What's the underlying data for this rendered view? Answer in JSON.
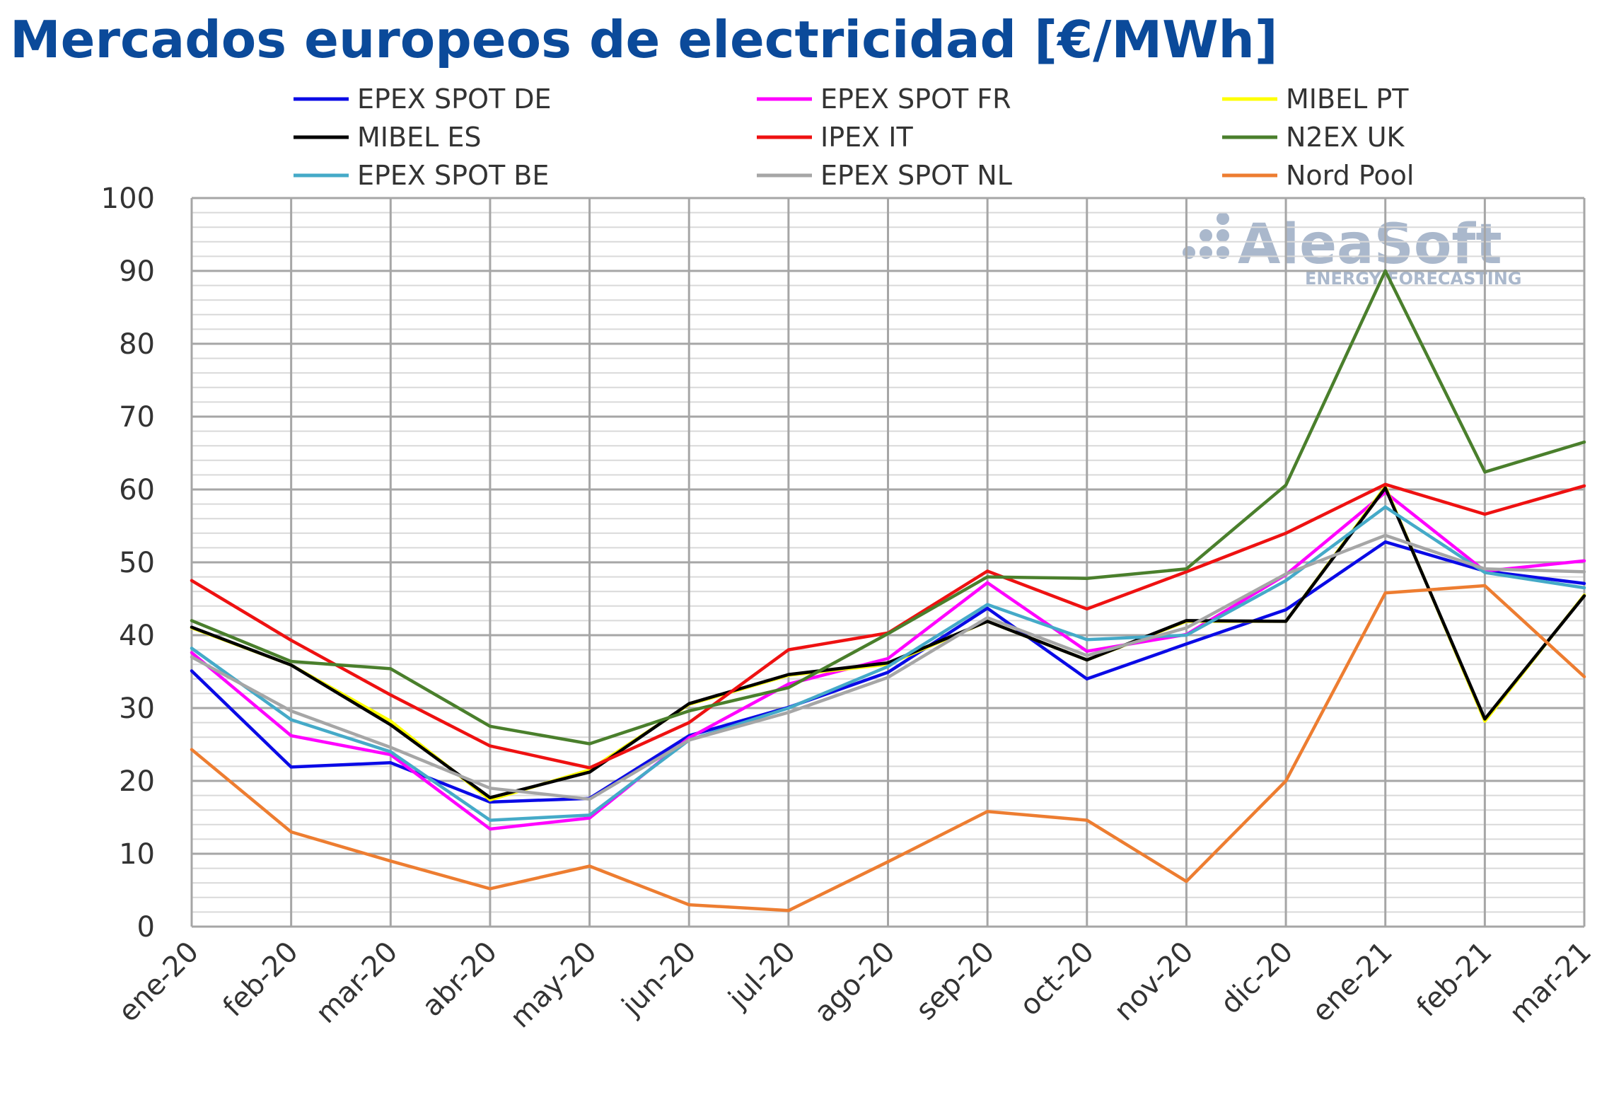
{
  "title": "Mercados europeos de electricidad [€/MWh]",
  "watermark": {
    "brand": "AleaSoft",
    "tagline": "ENERGY FORECASTING"
  },
  "chart_data": {
    "type": "line",
    "title": "Mercados europeos de electricidad [€/MWh]",
    "xlabel": "",
    "ylabel": "",
    "ylim": [
      0,
      100
    ],
    "yticks": [
      0,
      10,
      20,
      30,
      40,
      50,
      60,
      70,
      80,
      90,
      100
    ],
    "grid": true,
    "legend_position": "top",
    "categories": [
      "ene-20",
      "feb-20",
      "mar-20",
      "abr-20",
      "may-20",
      "jun-20",
      "jul-20",
      "ago-20",
      "sep-20",
      "oct-20",
      "nov-20",
      "dic-20",
      "ene-21",
      "feb-21",
      "mar-21"
    ],
    "series": [
      {
        "name": "EPEX SPOT DE",
        "color": "#0a0ae6",
        "values": [
          35.1,
          21.9,
          22.5,
          17.1,
          17.6,
          26.2,
          30.1,
          34.9,
          43.7,
          34.0,
          38.8,
          43.5,
          52.8,
          48.8,
          47.1
        ]
      },
      {
        "name": "EPEX SPOT FR",
        "color": "#ff00ff",
        "values": [
          37.6,
          26.2,
          23.6,
          13.4,
          14.9,
          25.9,
          33.3,
          36.8,
          47.2,
          37.8,
          40.1,
          48.3,
          59.6,
          48.8,
          50.2
        ]
      },
      {
        "name": "MIBEL PT",
        "color": "#ffff00",
        "values": [
          41.0,
          35.9,
          28.2,
          17.4,
          21.5,
          30.5,
          34.5,
          36.0,
          41.9,
          36.6,
          41.9,
          41.9,
          60.4,
          28.2,
          45.5
        ]
      },
      {
        "name": "MIBEL ES",
        "color": "#000000",
        "values": [
          41.1,
          35.9,
          27.7,
          17.7,
          21.2,
          30.6,
          34.6,
          36.2,
          41.9,
          36.6,
          42.0,
          41.9,
          60.2,
          28.5,
          45.4
        ]
      },
      {
        "name": "IPEX IT",
        "color": "#ee1111",
        "values": [
          47.5,
          39.3,
          31.8,
          24.8,
          21.8,
          28.0,
          38.0,
          40.3,
          48.8,
          43.6,
          48.7,
          54.0,
          60.7,
          56.6,
          60.5
        ]
      },
      {
        "name": "N2EX UK",
        "color": "#4a7f2c",
        "values": [
          42.0,
          36.4,
          35.4,
          27.5,
          25.1,
          29.6,
          32.8,
          40.2,
          48.0,
          47.8,
          49.1,
          60.6,
          90.0,
          62.4,
          66.5
        ]
      },
      {
        "name": "EPEX SPOT BE",
        "color": "#45aac8",
        "values": [
          38.2,
          28.4,
          24.0,
          14.6,
          15.3,
          25.6,
          30.0,
          35.7,
          44.2,
          39.4,
          40.0,
          47.5,
          57.6,
          48.6,
          46.5
        ]
      },
      {
        "name": "EPEX SPOT NL",
        "color": "#a6a6a6",
        "values": [
          37.0,
          29.6,
          24.6,
          19.0,
          17.5,
          25.6,
          29.4,
          34.2,
          42.4,
          37.2,
          41.0,
          48.4,
          53.7,
          49.1,
          48.7
        ]
      },
      {
        "name": "Nord Pool",
        "color": "#ed7d31",
        "values": [
          24.3,
          13.0,
          9.0,
          5.2,
          8.3,
          3.0,
          2.2,
          8.9,
          15.8,
          14.6,
          6.2,
          20.0,
          45.8,
          46.8,
          34.3
        ]
      }
    ]
  }
}
